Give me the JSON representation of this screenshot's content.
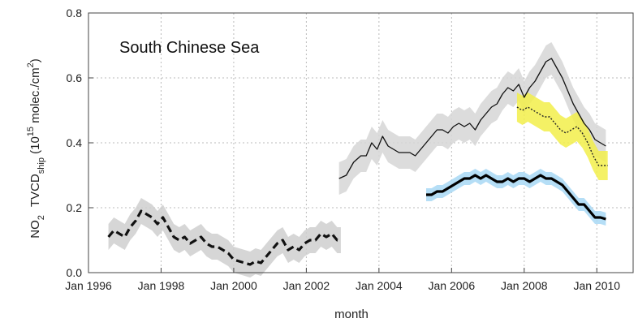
{
  "chart_data": {
    "type": "line",
    "title": "South Chinese Sea",
    "xlabel": "month",
    "ylabel": {
      "part1": "NO",
      "part1_sub": "2",
      "part2": "TVCD",
      "part2_sub": "ship",
      "part3": " (10",
      "part3_sup": "15",
      "part4": " molec./cm",
      "part4_sup": "2",
      "part5": ")"
    },
    "xlim": [
      1996.0,
      2011.0
    ],
    "ylim": [
      0.0,
      0.8
    ],
    "grid": true,
    "x_ticks": [
      {
        "value": 1996.0,
        "label": "Jan 1996"
      },
      {
        "value": 1998.0,
        "label": "Jan 1998"
      },
      {
        "value": 2000.0,
        "label": "Jan 2000"
      },
      {
        "value": 2002.0,
        "label": "Jan 2002"
      },
      {
        "value": 2004.0,
        "label": "Jan 2004"
      },
      {
        "value": 2006.0,
        "label": "Jan 2006"
      },
      {
        "value": 2008.0,
        "label": "Jan 2008"
      },
      {
        "value": 2010.0,
        "label": "Jan 2010"
      }
    ],
    "y_ticks": [
      {
        "value": 0.0,
        "label": "0.0"
      },
      {
        "value": 0.2,
        "label": "0.2"
      },
      {
        "value": 0.4,
        "label": "0.4"
      },
      {
        "value": 0.6,
        "label": "0.6"
      },
      {
        "value": 0.8,
        "label": "0.8"
      }
    ],
    "series": [
      {
        "line_color": "#111111",
        "band_color": "#cfcfcf",
        "line_style": "dashed",
        "line_width": 3.2,
        "points": [
          [
            1996.55,
            0.11
          ],
          [
            1996.7,
            0.13
          ],
          [
            1996.85,
            0.12
          ],
          [
            1997.0,
            0.11
          ],
          [
            1997.15,
            0.14
          ],
          [
            1997.3,
            0.16
          ],
          [
            1997.45,
            0.19
          ],
          [
            1997.6,
            0.18
          ],
          [
            1997.75,
            0.17
          ],
          [
            1997.9,
            0.15
          ],
          [
            1998.05,
            0.17
          ],
          [
            1998.2,
            0.14
          ],
          [
            1998.35,
            0.11
          ],
          [
            1998.5,
            0.1
          ],
          [
            1998.65,
            0.11
          ],
          [
            1998.8,
            0.09
          ],
          [
            1998.95,
            0.1
          ],
          [
            1999.1,
            0.11
          ],
          [
            1999.25,
            0.09
          ],
          [
            1999.4,
            0.08
          ],
          [
            1999.55,
            0.08
          ],
          [
            1999.7,
            0.07
          ],
          [
            1999.85,
            0.06
          ],
          [
            2000.0,
            0.04
          ],
          [
            2000.15,
            0.035
          ],
          [
            2000.3,
            0.03
          ],
          [
            2000.45,
            0.025
          ],
          [
            2000.6,
            0.035
          ],
          [
            2000.75,
            0.03
          ],
          [
            2000.9,
            0.05
          ],
          [
            2001.05,
            0.07
          ],
          [
            2001.2,
            0.09
          ],
          [
            2001.35,
            0.1
          ],
          [
            2001.5,
            0.07
          ],
          [
            2001.65,
            0.08
          ],
          [
            2001.8,
            0.07
          ],
          [
            2001.95,
            0.09
          ],
          [
            2002.1,
            0.1
          ],
          [
            2002.25,
            0.1
          ],
          [
            2002.4,
            0.12
          ],
          [
            2002.55,
            0.11
          ],
          [
            2002.7,
            0.12
          ],
          [
            2002.85,
            0.1
          ],
          [
            2002.95,
            0.1
          ]
        ],
        "band_halfwidth": 0.04
      },
      {
        "line_color": "#111111",
        "band_color": "#d6d6d6",
        "line_style": "solid",
        "line_width": 1.3,
        "points": [
          [
            2002.9,
            0.29
          ],
          [
            2003.1,
            0.3
          ],
          [
            2003.3,
            0.34
          ],
          [
            2003.5,
            0.36
          ],
          [
            2003.65,
            0.36
          ],
          [
            2003.8,
            0.4
          ],
          [
            2003.95,
            0.38
          ],
          [
            2004.1,
            0.42
          ],
          [
            2004.25,
            0.39
          ],
          [
            2004.4,
            0.38
          ],
          [
            2004.55,
            0.37
          ],
          [
            2004.7,
            0.37
          ],
          [
            2004.85,
            0.37
          ],
          [
            2005.0,
            0.36
          ],
          [
            2005.15,
            0.38
          ],
          [
            2005.3,
            0.4
          ],
          [
            2005.45,
            0.42
          ],
          [
            2005.6,
            0.44
          ],
          [
            2005.75,
            0.44
          ],
          [
            2005.9,
            0.43
          ],
          [
            2006.05,
            0.45
          ],
          [
            2006.2,
            0.46
          ],
          [
            2006.35,
            0.45
          ],
          [
            2006.5,
            0.46
          ],
          [
            2006.65,
            0.44
          ],
          [
            2006.8,
            0.47
          ],
          [
            2006.95,
            0.49
          ],
          [
            2007.1,
            0.51
          ],
          [
            2007.25,
            0.52
          ],
          [
            2007.4,
            0.55
          ],
          [
            2007.55,
            0.57
          ],
          [
            2007.7,
            0.56
          ],
          [
            2007.85,
            0.58
          ],
          [
            2008.0,
            0.54
          ],
          [
            2008.15,
            0.57
          ],
          [
            2008.3,
            0.59
          ],
          [
            2008.45,
            0.62
          ],
          [
            2008.6,
            0.65
          ],
          [
            2008.75,
            0.66
          ],
          [
            2008.9,
            0.63
          ],
          [
            2009.05,
            0.6
          ],
          [
            2009.2,
            0.56
          ],
          [
            2009.35,
            0.52
          ],
          [
            2009.5,
            0.49
          ],
          [
            2009.65,
            0.46
          ],
          [
            2009.8,
            0.44
          ],
          [
            2009.95,
            0.41
          ],
          [
            2010.1,
            0.4
          ],
          [
            2010.25,
            0.39
          ]
        ],
        "band_halfwidth": 0.05
      },
      {
        "line_color": "#222222",
        "band_color": "#f2ee4a",
        "line_style": "dotted",
        "line_width": 1.4,
        "points": [
          [
            2007.8,
            0.51
          ],
          [
            2007.95,
            0.5
          ],
          [
            2008.1,
            0.51
          ],
          [
            2008.25,
            0.5
          ],
          [
            2008.4,
            0.49
          ],
          [
            2008.55,
            0.48
          ],
          [
            2008.7,
            0.48
          ],
          [
            2008.85,
            0.46
          ],
          [
            2009.0,
            0.44
          ],
          [
            2009.15,
            0.43
          ],
          [
            2009.3,
            0.44
          ],
          [
            2009.45,
            0.45
          ],
          [
            2009.6,
            0.43
          ],
          [
            2009.75,
            0.4
          ],
          [
            2009.9,
            0.36
          ],
          [
            2010.05,
            0.33
          ],
          [
            2010.2,
            0.33
          ],
          [
            2010.3,
            0.33
          ]
        ],
        "band_halfwidth": 0.045
      },
      {
        "line_color": "#000000",
        "band_color": "#a8d8f5",
        "line_style": "solid",
        "line_width": 3.2,
        "points": [
          [
            2005.3,
            0.24
          ],
          [
            2005.45,
            0.24
          ],
          [
            2005.6,
            0.25
          ],
          [
            2005.75,
            0.25
          ],
          [
            2005.9,
            0.26
          ],
          [
            2006.05,
            0.27
          ],
          [
            2006.2,
            0.28
          ],
          [
            2006.35,
            0.29
          ],
          [
            2006.5,
            0.29
          ],
          [
            2006.65,
            0.3
          ],
          [
            2006.8,
            0.29
          ],
          [
            2006.95,
            0.3
          ],
          [
            2007.1,
            0.29
          ],
          [
            2007.25,
            0.28
          ],
          [
            2007.4,
            0.28
          ],
          [
            2007.55,
            0.29
          ],
          [
            2007.7,
            0.28
          ],
          [
            2007.85,
            0.29
          ],
          [
            2008.0,
            0.29
          ],
          [
            2008.15,
            0.28
          ],
          [
            2008.3,
            0.29
          ],
          [
            2008.45,
            0.3
          ],
          [
            2008.6,
            0.29
          ],
          [
            2008.75,
            0.29
          ],
          [
            2008.9,
            0.28
          ],
          [
            2009.05,
            0.27
          ],
          [
            2009.2,
            0.25
          ],
          [
            2009.35,
            0.23
          ],
          [
            2009.5,
            0.21
          ],
          [
            2009.65,
            0.21
          ],
          [
            2009.8,
            0.19
          ],
          [
            2009.95,
            0.17
          ],
          [
            2010.1,
            0.17
          ],
          [
            2010.25,
            0.165
          ]
        ],
        "band_halfwidth": 0.02
      }
    ]
  }
}
